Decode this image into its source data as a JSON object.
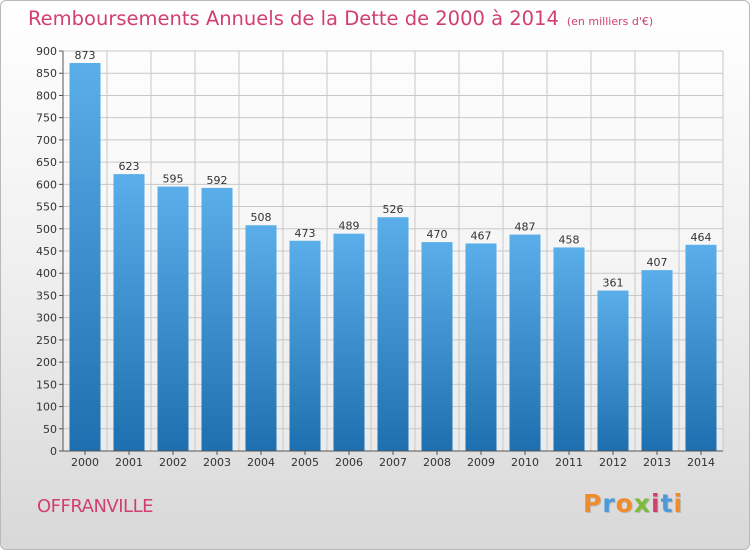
{
  "header": {
    "title": "Remboursements Annuels de la Dette de 2000 à 2014",
    "subtitle": "(en milliers d'€)"
  },
  "footer": {
    "commune": "OFFRANVILLE",
    "logo_letters": [
      "P",
      "r",
      "o",
      "x",
      "i",
      "t",
      "i"
    ]
  },
  "colors": {
    "accent": "#d23f6e",
    "bar_light": "#5aaee9",
    "bar_dark": "#1e6faf",
    "grid": "#c8c8c8"
  },
  "chart_data": {
    "type": "bar",
    "title": "Remboursements Annuels de la Dette de 2000 à 2014",
    "xlabel": "",
    "ylabel": "",
    "unit": "milliers d'€",
    "categories": [
      "2000",
      "2001",
      "2002",
      "2003",
      "2004",
      "2005",
      "2006",
      "2007",
      "2008",
      "2009",
      "2010",
      "2011",
      "2012",
      "2013",
      "2014"
    ],
    "values": [
      873,
      623,
      595,
      592,
      508,
      473,
      489,
      526,
      470,
      467,
      487,
      458,
      361,
      407,
      464
    ],
    "ylim": [
      0,
      900
    ],
    "yticks": [
      0,
      50,
      100,
      150,
      200,
      250,
      300,
      350,
      400,
      450,
      500,
      550,
      600,
      650,
      700,
      750,
      800,
      850,
      900
    ],
    "grid": true,
    "legend": "none"
  }
}
